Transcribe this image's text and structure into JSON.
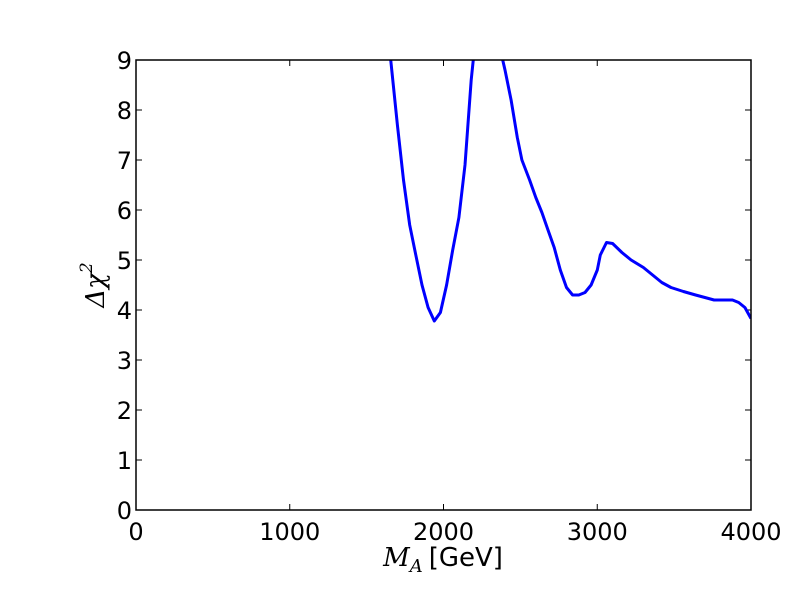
{
  "chart_data": {
    "type": "line",
    "title": "",
    "xlabel": {
      "symbol": "M",
      "subscript": "A",
      "unit": "[GeV]"
    },
    "ylabel": {
      "symbol": "Δχ",
      "superscript": "2"
    },
    "xlim": [
      0,
      4000
    ],
    "ylim": [
      0,
      9
    ],
    "xticks": [
      0,
      1000,
      2000,
      3000,
      4000
    ],
    "yticks": [
      0,
      1,
      2,
      3,
      4,
      5,
      6,
      7,
      8,
      9
    ],
    "grid": false,
    "legend": "none",
    "series": [
      {
        "color": "#0000ff",
        "points": [
          [
            1650,
            9.2
          ],
          [
            1700,
            7.7
          ],
          [
            1740,
            6.6
          ],
          [
            1780,
            5.7
          ],
          [
            1820,
            5.1
          ],
          [
            1860,
            4.5
          ],
          [
            1900,
            4.05
          ],
          [
            1940,
            3.78
          ],
          [
            1980,
            3.95
          ],
          [
            2020,
            4.5
          ],
          [
            2060,
            5.2
          ],
          [
            2100,
            5.85
          ],
          [
            2140,
            6.9
          ],
          [
            2180,
            8.6
          ],
          [
            2200,
            9.2
          ],
          [
            2370,
            9.2
          ],
          [
            2400,
            8.8
          ],
          [
            2440,
            8.2
          ],
          [
            2480,
            7.45
          ],
          [
            2510,
            7.0
          ],
          [
            2560,
            6.6
          ],
          [
            2600,
            6.25
          ],
          [
            2640,
            5.95
          ],
          [
            2680,
            5.6
          ],
          [
            2720,
            5.25
          ],
          [
            2760,
            4.8
          ],
          [
            2800,
            4.45
          ],
          [
            2840,
            4.3
          ],
          [
            2880,
            4.3
          ],
          [
            2920,
            4.35
          ],
          [
            2960,
            4.5
          ],
          [
            3000,
            4.8
          ],
          [
            3020,
            5.1
          ],
          [
            3060,
            5.35
          ],
          [
            3100,
            5.33
          ],
          [
            3160,
            5.15
          ],
          [
            3220,
            5.0
          ],
          [
            3300,
            4.85
          ],
          [
            3360,
            4.7
          ],
          [
            3420,
            4.55
          ],
          [
            3480,
            4.45
          ],
          [
            3560,
            4.37
          ],
          [
            3640,
            4.3
          ],
          [
            3700,
            4.25
          ],
          [
            3760,
            4.2
          ],
          [
            3820,
            4.2
          ],
          [
            3880,
            4.2
          ],
          [
            3920,
            4.15
          ],
          [
            3960,
            4.05
          ],
          [
            4000,
            3.83
          ]
        ]
      }
    ]
  }
}
